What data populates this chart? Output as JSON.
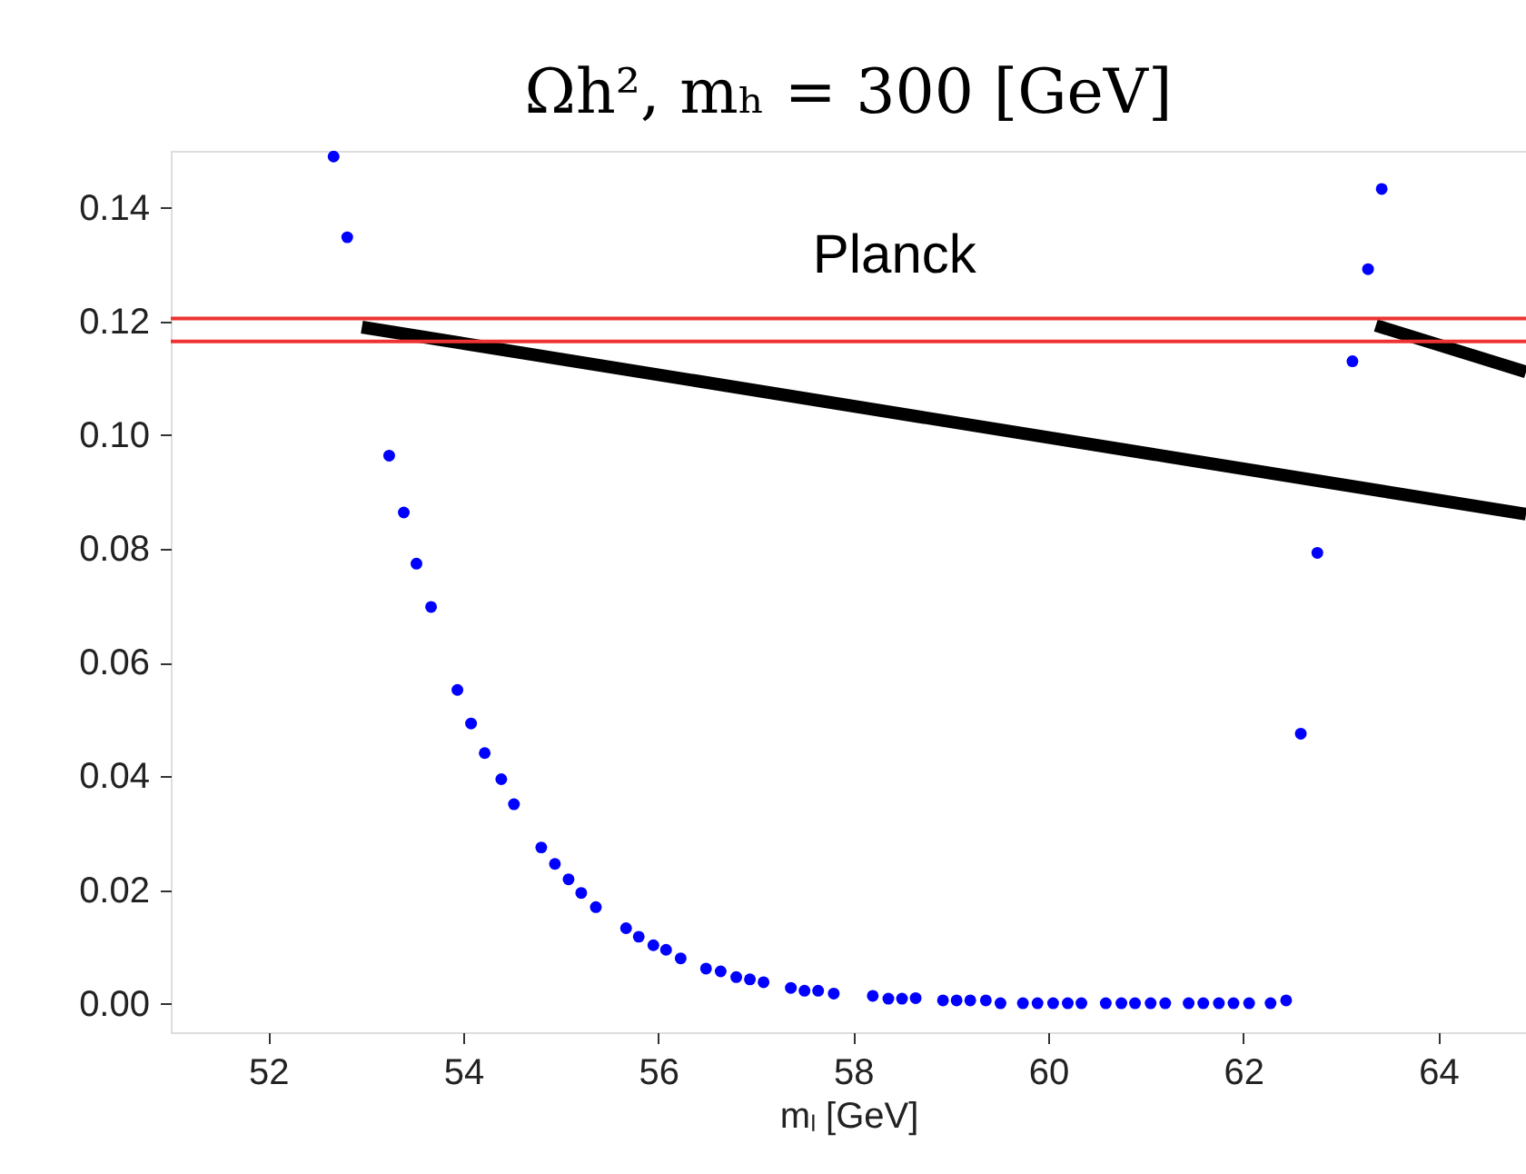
{
  "chart_data": {
    "type": "scatter",
    "title": "Ωh², mₕ = 300 [GeV]",
    "xlabel": "mₗ [GeV]",
    "x": [
      52.67,
      52.81,
      53.24,
      53.39,
      53.52,
      53.67,
      53.94,
      54.08,
      54.22,
      54.39,
      54.52,
      54.8,
      54.94,
      55.08,
      55.21,
      55.36,
      55.67,
      55.8,
      55.95,
      56.08,
      56.23,
      56.49,
      56.64,
      56.8,
      56.94,
      57.08,
      57.36,
      57.5,
      57.64,
      57.8,
      58.2,
      58.36,
      58.5,
      58.64,
      58.92,
      59.06,
      59.2,
      59.36,
      59.51,
      59.74,
      59.89,
      60.05,
      60.2,
      60.34,
      60.59,
      60.75,
      60.89,
      61.05,
      61.2,
      61.44,
      61.59,
      61.75,
      61.9,
      62.06,
      62.28,
      62.44,
      62.59,
      62.76,
      63.12,
      63.28,
      63.42
    ],
    "series": [
      {
        "color": "#0000ff",
        "values": [
          0.149,
          0.1348,
          0.0964,
          0.0864,
          0.0774,
          0.0698,
          0.0552,
          0.0493,
          0.0441,
          0.0395,
          0.0351,
          0.0275,
          0.0246,
          0.0219,
          0.0195,
          0.017,
          0.0133,
          0.0118,
          0.0103,
          0.0095,
          0.008,
          0.0062,
          0.0057,
          0.0047,
          0.0043,
          0.0038,
          0.0028,
          0.0023,
          0.0023,
          0.0018,
          0.0014,
          0.0009,
          0.0009,
          0.001,
          0.0006,
          0.0006,
          0.0006,
          0.0006,
          0.0001,
          0.0001,
          0.0001,
          0.0001,
          0.0001,
          0.0001,
          0.0001,
          0.0001,
          0.0001,
          0.0001,
          0.0001,
          0.0001,
          0.0001,
          0.0001,
          0.0001,
          0.0001,
          0.0001,
          0.0006,
          0.0475,
          0.0793,
          0.113,
          0.1292,
          0.1433
        ]
      },
      {
        "type": "line",
        "color": "#000000",
        "marker": "none",
        "x": [
          52.96,
          64.9
        ],
        "values": [
          0.119,
          0.0861
        ]
      },
      {
        "type": "line",
        "color": "#000000",
        "marker": "none",
        "x": [
          63.36,
          64.9
        ],
        "values": [
          0.1193,
          0.1111
        ]
      }
    ],
    "xlim": [
      51,
      64.9
    ],
    "ylim": [
      -0.005,
      0.15
    ],
    "xticks": [
      52,
      54,
      56,
      58,
      60,
      62,
      64
    ],
    "yticks": [
      {
        "value": 0,
        "label": "0.00"
      },
      {
        "value": 0.02,
        "label": "0.02"
      },
      {
        "value": 0.04,
        "label": "0.04"
      },
      {
        "value": 0.06,
        "label": "0.06"
      },
      {
        "value": 0.08,
        "label": "0.08"
      },
      {
        "value": 0.1,
        "label": "0.10"
      },
      {
        "value": 0.12,
        "label": "0.12"
      },
      {
        "value": 0.14,
        "label": "0.14"
      }
    ],
    "ref_lines": [
      {
        "axis": "y",
        "value": 0.1205,
        "color": "#ee3333"
      },
      {
        "axis": "y",
        "value": 0.1165,
        "color": "#ee3333"
      }
    ],
    "annotations": [
      "Planck"
    ],
    "grid": false,
    "marker": "circle"
  }
}
